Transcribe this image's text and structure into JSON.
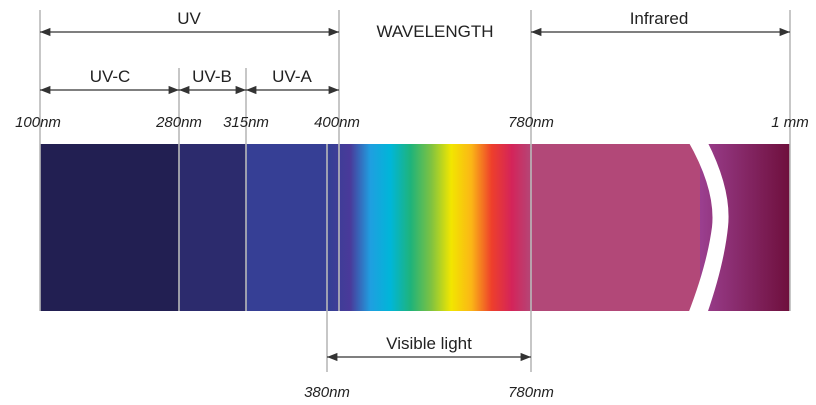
{
  "title": "WAVELENGTH",
  "regions": {
    "uv": "UV",
    "infrared": "Infrared",
    "uv_c": "UV-C",
    "uv_b": "UV-B",
    "uv_a": "UV-A",
    "visible": "Visible light"
  },
  "ticks_top": {
    "t100": "100nm",
    "t280": "280nm",
    "t315": "315nm",
    "t400": "400nm",
    "t780": "780nm",
    "t1mm": "1 mm"
  },
  "ticks_bottom": {
    "t380": "380nm",
    "t780": "780nm"
  },
  "colors": {
    "uv_c": "#221f52",
    "uv_b": "#2c2b6d",
    "uv_a": "#363f95",
    "infrared": "#b24878",
    "far_infrared_start": "#9b3f8f",
    "far_infrared_end": "#6e0f3c",
    "gap": "#ffffff",
    "guide_lines": "#b9b9b9",
    "arrows": "#333333"
  },
  "spectrum_colors": [
    "#363f95",
    "#4a3a9a",
    "#1f9fe0",
    "#00b6d8",
    "#1fb37a",
    "#7dc242",
    "#f2e600",
    "#fbb616",
    "#ee3f2b",
    "#d4245a",
    "#b24878"
  ]
}
